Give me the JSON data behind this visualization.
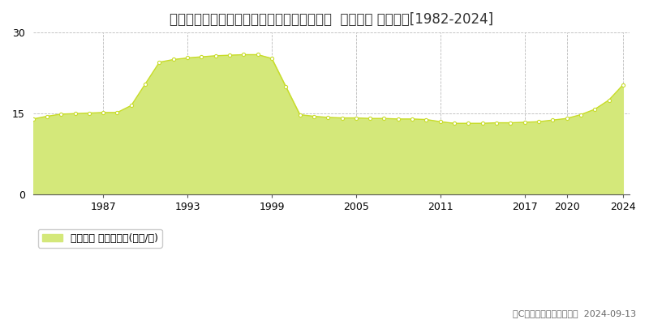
{
  "title": "北海道札幌市北区笹路１条３丁目１番５０外  地価公示 地価推移[1982-2024]",
  "years": [
    1982,
    1983,
    1984,
    1985,
    1986,
    1987,
    1988,
    1989,
    1990,
    1991,
    1992,
    1993,
    1994,
    1995,
    1996,
    1997,
    1998,
    1999,
    2000,
    2001,
    2002,
    2003,
    2004,
    2005,
    2006,
    2007,
    2008,
    2009,
    2010,
    2011,
    2012,
    2013,
    2014,
    2015,
    2016,
    2017,
    2018,
    2019,
    2020,
    2021,
    2022,
    2023,
    2024
  ],
  "values": [
    14.0,
    14.5,
    14.9,
    15.0,
    15.1,
    15.2,
    15.2,
    16.5,
    20.5,
    24.5,
    25.0,
    25.3,
    25.5,
    25.7,
    25.8,
    25.9,
    25.9,
    25.2,
    20.0,
    14.8,
    14.5,
    14.3,
    14.2,
    14.2,
    14.1,
    14.1,
    14.0,
    14.0,
    13.9,
    13.5,
    13.2,
    13.2,
    13.2,
    13.3,
    13.3,
    13.4,
    13.5,
    13.8,
    14.1,
    14.8,
    15.8,
    17.5,
    20.3
  ],
  "line_color": "#c8dc28",
  "fill_color": "#d4e87a",
  "marker_color": "#c8dc28",
  "background_color": "#ffffff",
  "grid_color": "#bbbbbb",
  "ylim": [
    0,
    30
  ],
  "yticks": [
    0,
    15,
    30
  ],
  "xtick_labels": [
    "1987",
    "1993",
    "1999",
    "2005",
    "2011",
    "2017",
    "2020",
    "2024"
  ],
  "xtick_values": [
    1987,
    1993,
    1999,
    2005,
    2011,
    2017,
    2020,
    2024
  ],
  "legend_label": "地価公示 平均坤単価(万円/坤)",
  "copyright_text": "（C）土地価格ドットコム  2024-09-13",
  "title_fontsize": 12,
  "axis_fontsize": 9,
  "legend_fontsize": 9
}
